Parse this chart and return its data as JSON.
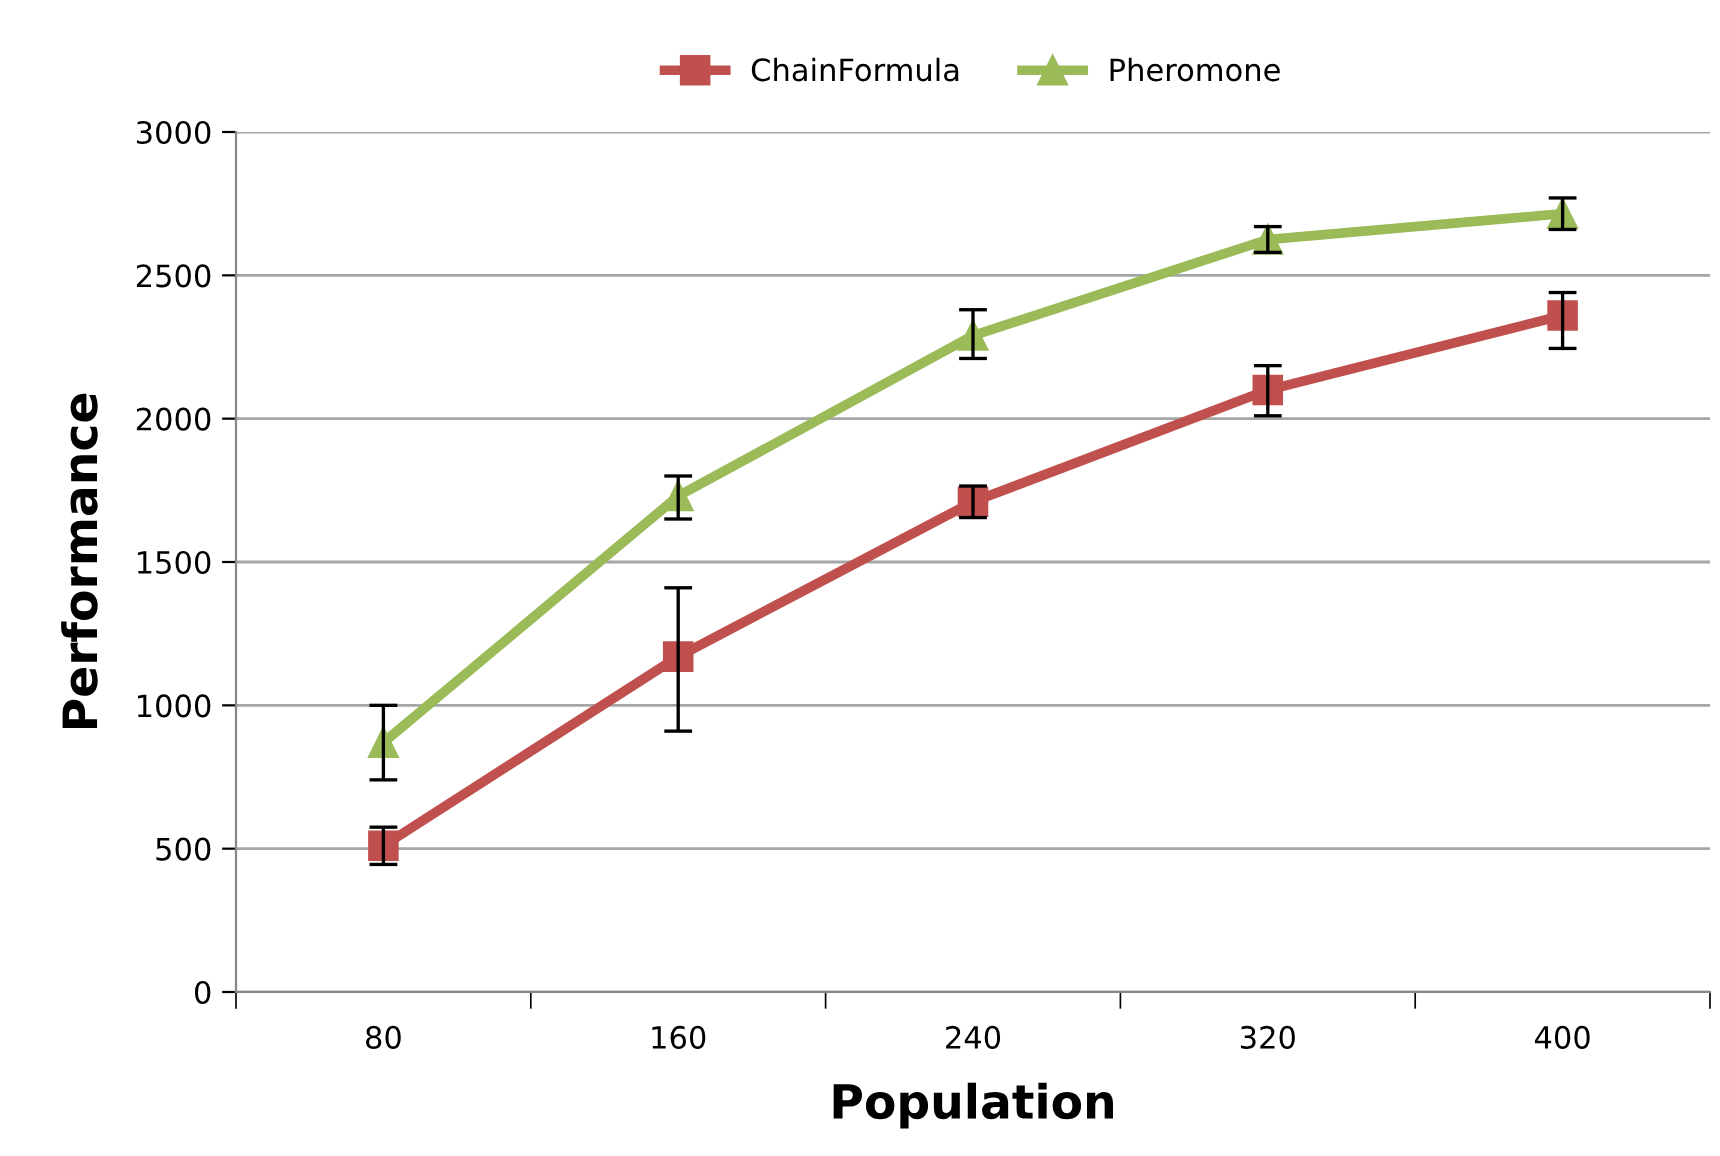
{
  "chart_data": {
    "type": "line",
    "xlabel": "Population",
    "ylabel": "Performance",
    "categories": [
      "80",
      "160",
      "240",
      "320",
      "400"
    ],
    "series": [
      {
        "name": "ChainFormula",
        "color": "#c0504d",
        "marker": "square",
        "values": [
          510,
          1170,
          1710,
          2100,
          2360
        ],
        "errors": [
          [
            445,
            575
          ],
          [
            910,
            1410
          ],
          [
            1655,
            1765
          ],
          [
            2010,
            2185
          ],
          [
            2245,
            2440
          ]
        ]
      },
      {
        "name": "Pheromone",
        "color": "#9bbb59",
        "marker": "triangle",
        "values": [
          870,
          1730,
          2290,
          2625,
          2715
        ],
        "errors": [
          [
            740,
            1000
          ],
          [
            1650,
            1800
          ],
          [
            2210,
            2380
          ],
          [
            2580,
            2670
          ],
          [
            2660,
            2770
          ]
        ]
      }
    ],
    "ylim": [
      0,
      3000
    ],
    "yticks": [
      0,
      500,
      1000,
      1500,
      2000,
      2500,
      3000
    ],
    "grid": "y",
    "legend": "top"
  }
}
